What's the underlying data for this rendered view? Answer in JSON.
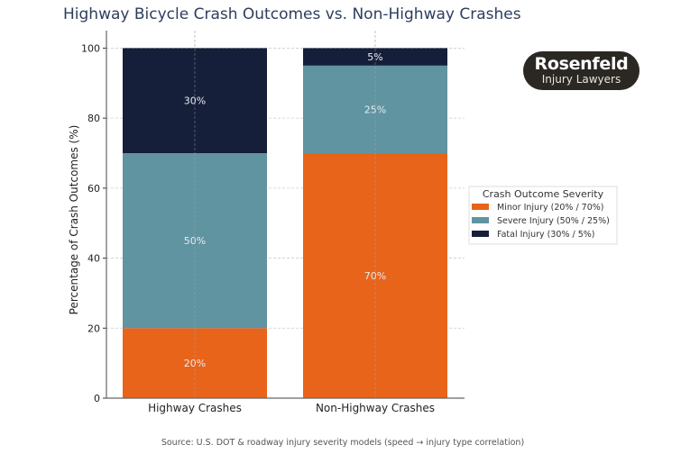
{
  "chart_data": {
    "type": "bar",
    "stacked": true,
    "title": "Highway Bicycle Crash Outcomes vs. Non-Highway Crashes",
    "xlabel": "",
    "ylabel": "Percentage of Crash Outcomes (%)",
    "categories": [
      "Highway Crashes",
      "Non-Highway Crashes"
    ],
    "ylim": [
      0,
      105
    ],
    "yticks": [
      0,
      20,
      40,
      60,
      80,
      100
    ],
    "grid": true,
    "series": [
      {
        "name": "Minor Injury (20% / 70%)",
        "values": [
          20,
          70
        ],
        "labels": [
          "20%",
          "70%"
        ],
        "color": "#E8641A"
      },
      {
        "name": "Severe Injury (50% / 25%)",
        "values": [
          50,
          25
        ],
        "labels": [
          "50%",
          "25%"
        ],
        "color": "#5F94A0"
      },
      {
        "name": "Fatal Injury (30% / 5%)",
        "values": [
          30,
          5
        ],
        "labels": [
          "30%",
          "5%"
        ],
        "color": "#161F3A"
      }
    ],
    "legend": {
      "title": "Crash Outcome Severity",
      "placement": "center-right"
    },
    "source": "Source: U.S. DOT & roadway injury severity models (speed → injury type correlation)"
  },
  "logo": {
    "line1": "Rosenfeld",
    "line2": "Injury Lawyers"
  }
}
